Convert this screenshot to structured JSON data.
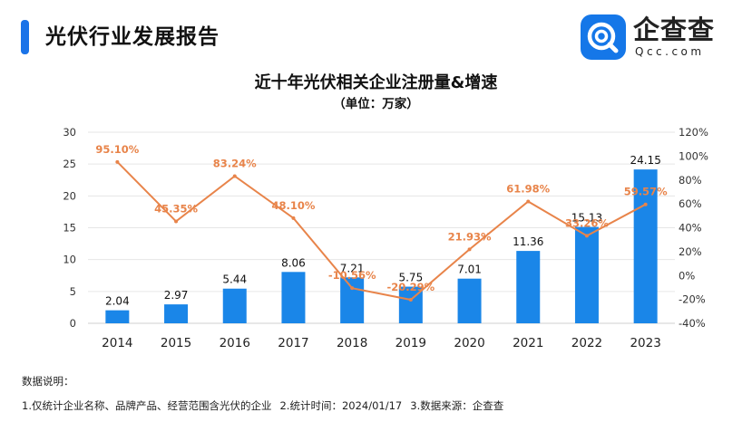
{
  "header": {
    "title": "光伏行业发展报告"
  },
  "logo": {
    "name": "企查查",
    "url": "Qcc.com"
  },
  "notes": {
    "heading": "数据说明：",
    "items": [
      "1.仅统计企业名称、品牌产品、经营范围含光伏的企业",
      "2.统计时间：2024/01/17",
      "3.数据来源：企查查"
    ]
  },
  "chart_data": {
    "type": "bar+line",
    "title": "近十年光伏相关企业注册量&增速",
    "subtitle": "（单位：万家）",
    "categories": [
      "2014",
      "2015",
      "2016",
      "2017",
      "2018",
      "2019",
      "2020",
      "2021",
      "2022",
      "2023"
    ],
    "bar": {
      "values": [
        2.04,
        2.97,
        5.44,
        8.06,
        7.21,
        5.75,
        7.01,
        11.36,
        15.13,
        24.15
      ],
      "labels": [
        "2.04",
        "2.97",
        "5.44",
        "8.06",
        "7.21",
        "5.75",
        "7.01",
        "11.36",
        "15.13",
        "24.15"
      ],
      "color": "#1a86e8"
    },
    "line": {
      "values": [
        95.1,
        45.35,
        83.24,
        48.1,
        -10.56,
        -20.29,
        21.93,
        61.98,
        33.26,
        59.57
      ],
      "labels": [
        "95.10%",
        "45.35%",
        "83.24%",
        "48.10%",
        "-10.56%",
        "-20.29%",
        "21.93%",
        "61.98%",
        "33.26%",
        "59.57%"
      ],
      "color": "#e8844a"
    },
    "y_left": {
      "min": 0,
      "max": 30,
      "ticks": [
        "0",
        "5",
        "10",
        "15",
        "20",
        "25",
        "30"
      ]
    },
    "y_right": {
      "min": -40,
      "max": 120,
      "ticks": [
        "-40%",
        "-20%",
        "0%",
        "20%",
        "40%",
        "60%",
        "80%",
        "100%",
        "120%"
      ]
    },
    "grid": true,
    "legend": "none"
  }
}
